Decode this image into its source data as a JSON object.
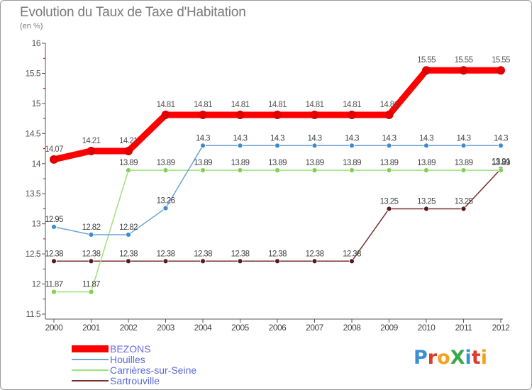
{
  "header": {
    "title": "Evolution du Taux de Taxe d'Habitation",
    "unit": "(en %)"
  },
  "logo": {
    "text": "Proxiti",
    "letters": [
      {
        "ch": "P",
        "color": "#3a8fd6"
      },
      {
        "ch": "r",
        "color": "#e23b2c"
      },
      {
        "ch": "o",
        "color": "#f4a11d"
      },
      {
        "ch": "X",
        "color": "#39a84a"
      },
      {
        "ch": "i",
        "color": "#3a8fd6"
      },
      {
        "ch": "t",
        "color": "#e23b2c"
      },
      {
        "ch": "i",
        "color": "#f4a11d"
      }
    ]
  },
  "chart_data": {
    "type": "line",
    "title": "Evolution du Taux de Taxe d'Habitation",
    "ylabel": "(en %)",
    "x": [
      "2000",
      "2001",
      "2002",
      "2003",
      "2004",
      "2005",
      "2006",
      "2007",
      "2008",
      "2009",
      "2010",
      "2011",
      "2012"
    ],
    "ylim": [
      11.5,
      16
    ],
    "yticks": [
      "11.5",
      "12",
      "12.5",
      "13",
      "13.5",
      "14",
      "14.5",
      "15",
      "15.5",
      "16"
    ],
    "grid": false,
    "legend_position": "bottom-left",
    "series": [
      {
        "name": "BEZONS",
        "color": "#ff0000",
        "marker_color": "#e00000",
        "label_color": "#555555",
        "values": [
          14.07,
          14.21,
          14.21,
          14.81,
          14.81,
          14.81,
          14.81,
          14.81,
          14.81,
          14.81,
          15.55,
          15.55,
          15.55
        ],
        "labels": [
          "14.07",
          "14.21",
          "14.21",
          "14.81",
          "14.81",
          "14.81",
          "14.81",
          "14.81",
          "14.81",
          "14.81",
          "15.55",
          "15.55",
          "15.55"
        ]
      },
      {
        "name": "Houilles",
        "color": "#6fa3d5",
        "marker_color": "#3d8bd0",
        "label_color": "#444444",
        "values": [
          12.95,
          12.82,
          12.82,
          13.26,
          14.3,
          14.3,
          14.3,
          14.3,
          14.3,
          14.3,
          14.3,
          14.3,
          14.3
        ],
        "labels": [
          "12.95",
          "12.82",
          "12.82",
          "13.26",
          "14.3",
          "14.3",
          "14.3",
          "14.3",
          "14.3",
          "14.3",
          "14.3",
          "14.3",
          "14.3"
        ]
      },
      {
        "name": "Carrières-sur-Seine",
        "color": "#9ee07a",
        "marker_color": "#7fd14f",
        "label_color": "#444444",
        "values": [
          11.87,
          11.87,
          13.89,
          13.89,
          13.89,
          13.89,
          13.89,
          13.89,
          13.89,
          13.89,
          13.89,
          13.89,
          13.89
        ],
        "labels": [
          "11.87",
          "11.87",
          "13.89",
          "13.89",
          "13.89",
          "13.89",
          "13.89",
          "13.89",
          "13.89",
          "13.89",
          "13.89",
          "13.89",
          "13.89"
        ]
      },
      {
        "name": "Sartrouville",
        "color": "#7a2f2f",
        "marker_color": "#5a1a1a",
        "label_color": "#444444",
        "values": [
          12.38,
          12.38,
          12.38,
          12.38,
          12.38,
          12.38,
          12.38,
          12.38,
          12.38,
          13.25,
          13.25,
          13.25,
          13.91
        ],
        "labels": [
          "12.38",
          "12.38",
          "12.38",
          "12.38",
          "12.38",
          "12.38",
          "12.38",
          "12.38",
          "12.38",
          "13.25",
          "13.25",
          "13.25",
          "13.91"
        ]
      }
    ]
  }
}
